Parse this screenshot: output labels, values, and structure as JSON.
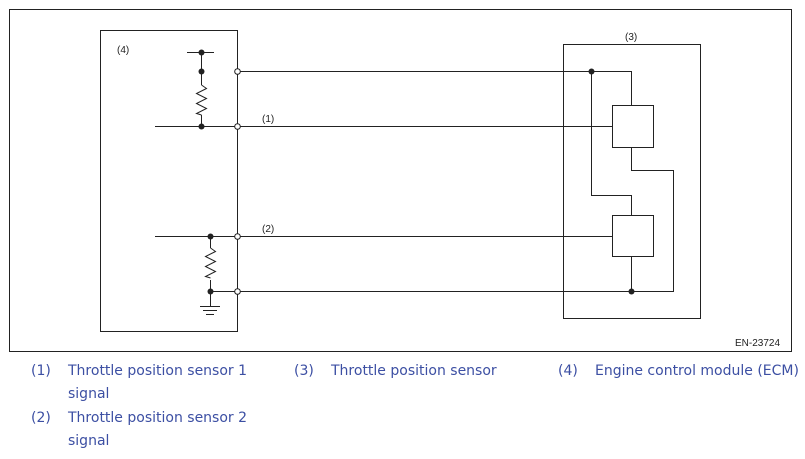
{
  "diagram": {
    "ecm_label": "(4)",
    "sensor_label": "(3)",
    "wire1_label": "(1)",
    "wire2_label": "(2)",
    "figure_id": "EN-23724"
  },
  "legend": [
    {
      "num": "(1)",
      "text": "Throttle position sensor 1 signal"
    },
    {
      "num": "(2)",
      "text": "Throttle position sensor 2 signal"
    },
    {
      "num": "(3)",
      "text": "Throttle position sensor"
    },
    {
      "num": "(4)",
      "text": "Engine control module (ECM)"
    }
  ],
  "colors": {
    "legend_text": "#3c4fa3",
    "lines": "#222222"
  }
}
